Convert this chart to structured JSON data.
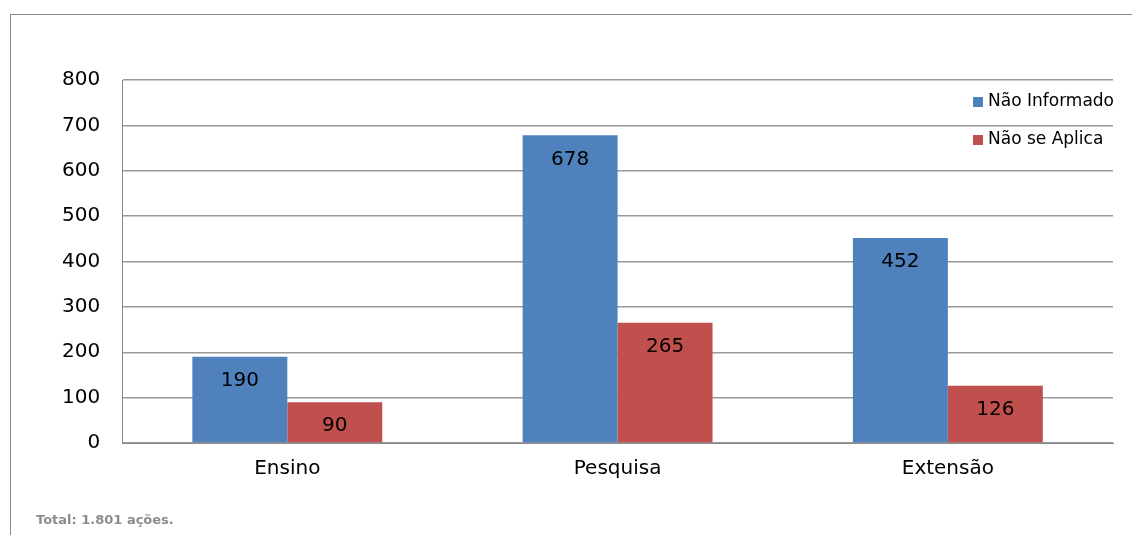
{
  "chart_data": {
    "type": "bar",
    "categories": [
      "Ensino",
      "Pesquisa",
      "Extensão"
    ],
    "series": [
      {
        "name": "Não Informado",
        "color": "#4f81bd",
        "values": [
          190,
          678,
          452
        ]
      },
      {
        "name": "Não se Aplica",
        "color": "#c0504d",
        "values": [
          90,
          265,
          126
        ]
      }
    ],
    "ylim": [
      0,
      800
    ],
    "yticks": [
      0,
      100,
      200,
      300,
      400,
      500,
      600,
      700,
      800
    ],
    "grid": "y",
    "legend": "top right",
    "data_labels": true,
    "annotations": [
      "Total: 1.801 ações."
    ]
  }
}
